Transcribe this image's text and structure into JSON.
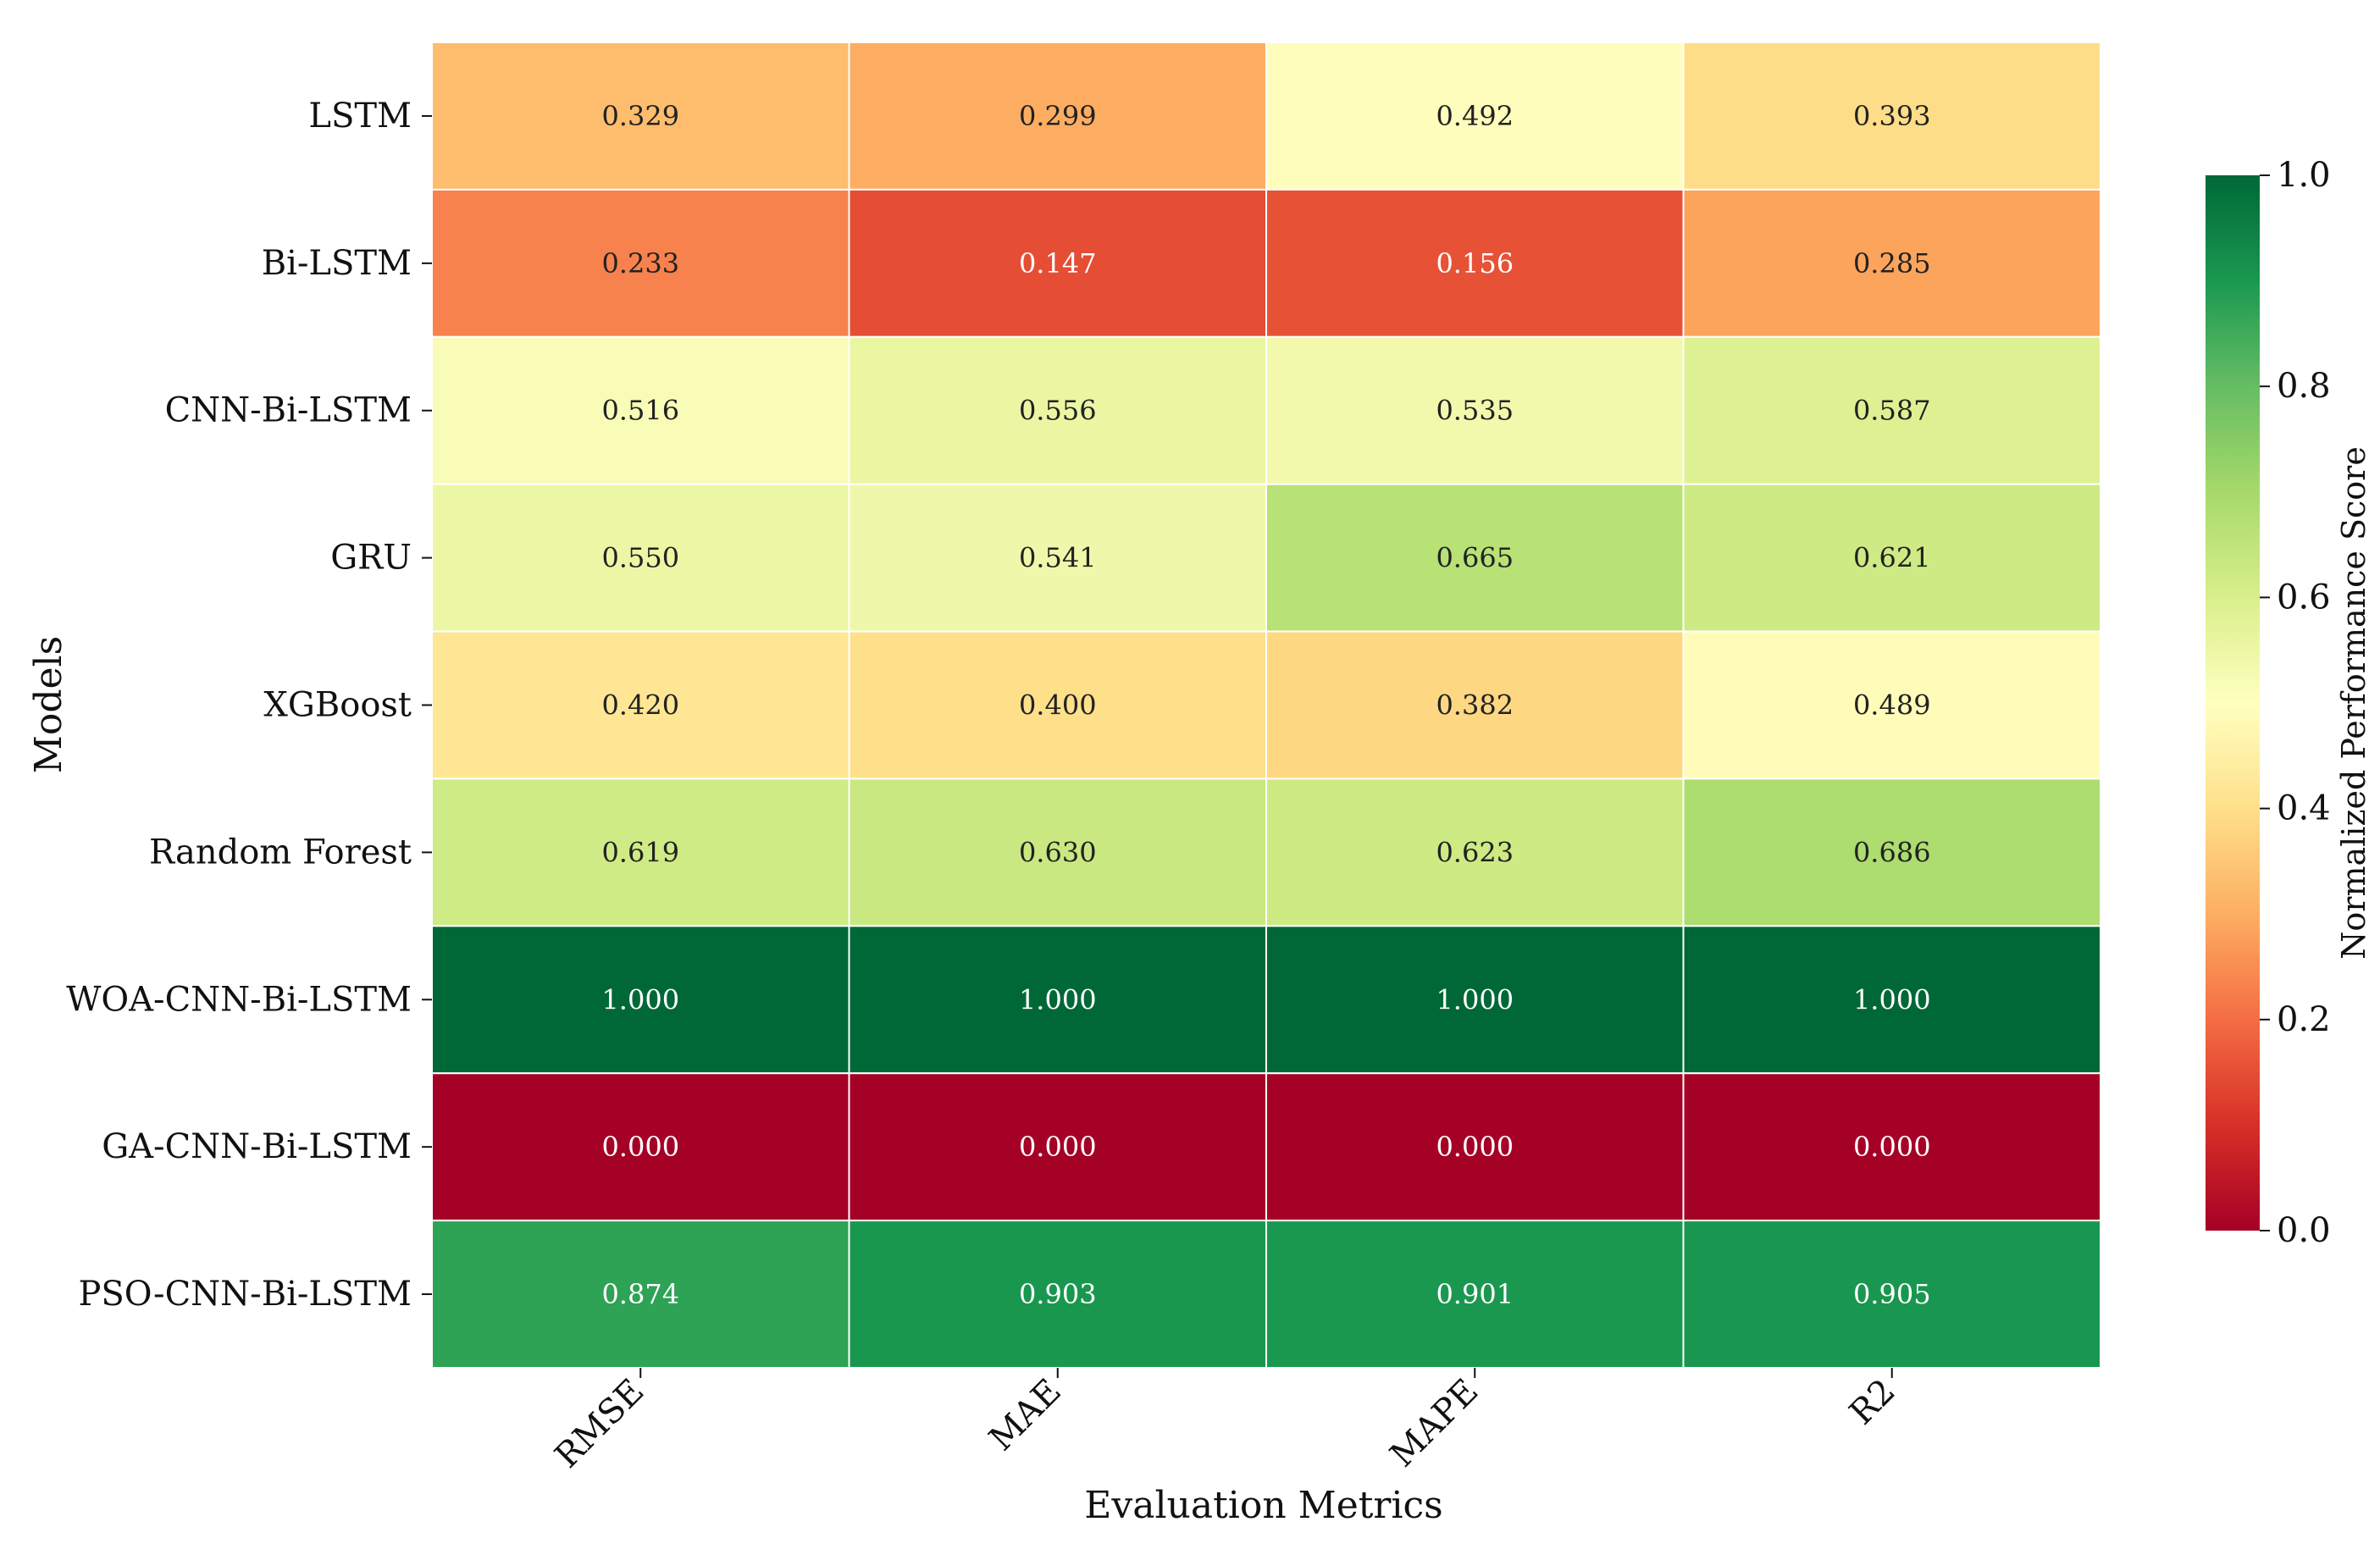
{
  "chart_data": {
    "type": "heatmap",
    "xlabel": "Evaluation Metrics",
    "ylabel": "Models",
    "categories": [
      "RMSE",
      "MAE",
      "MAPE",
      "R2"
    ],
    "rows": [
      "LSTM",
      "Bi-LSTM",
      "CNN-Bi-LSTM",
      "GRU",
      "XGBoost",
      "Random Forest",
      "WOA-CNN-Bi-LSTM",
      "GA-CNN-Bi-LSTM",
      "PSO-CNN-Bi-LSTM"
    ],
    "values": [
      [
        0.329,
        0.299,
        0.492,
        0.393
      ],
      [
        0.233,
        0.147,
        0.156,
        0.285
      ],
      [
        0.516,
        0.556,
        0.535,
        0.587
      ],
      [
        0.55,
        0.541,
        0.665,
        0.621
      ],
      [
        0.42,
        0.4,
        0.382,
        0.489
      ],
      [
        0.619,
        0.63,
        0.623,
        0.686
      ],
      [
        1.0,
        1.0,
        1.0,
        1.0
      ],
      [
        0.0,
        0.0,
        0.0,
        0.0
      ],
      [
        0.874,
        0.903,
        0.901,
        0.905
      ]
    ],
    "value_labels": [
      [
        "0.329",
        "0.299",
        "0.492",
        "0.393"
      ],
      [
        "0.233",
        "0.147",
        "0.156",
        "0.285"
      ],
      [
        "0.516",
        "0.556",
        "0.535",
        "0.587"
      ],
      [
        "0.550",
        "0.541",
        "0.665",
        "0.621"
      ],
      [
        "0.420",
        "0.400",
        "0.382",
        "0.489"
      ],
      [
        "0.619",
        "0.630",
        "0.623",
        "0.686"
      ],
      [
        "1.000",
        "1.000",
        "1.000",
        "1.000"
      ],
      [
        "0.000",
        "0.000",
        "0.000",
        "0.000"
      ],
      [
        "0.874",
        "0.903",
        "0.901",
        "0.905"
      ]
    ],
    "colormap": "RdYlGn",
    "vmin": 0.0,
    "vmax": 1.0,
    "colorbar": {
      "label": "Normalized Performance Score",
      "ticks": [
        0.0,
        0.2,
        0.4,
        0.6,
        0.8,
        1.0
      ],
      "tick_labels": [
        "0.0",
        "0.2",
        "0.4",
        "0.6",
        "0.8",
        "1.0"
      ],
      "placement": "right"
    },
    "grid": false
  },
  "colors": {
    "stops": [
      "#a50026",
      "#d73027",
      "#f46d43",
      "#fdae61",
      "#fee08b",
      "#ffffbf",
      "#d9ef8b",
      "#a6d96a",
      "#66bd63",
      "#1a9850",
      "#006837"
    ],
    "label_light": "#ffffff",
    "label_dark": "#222222",
    "cell_border": "#ffffff"
  }
}
